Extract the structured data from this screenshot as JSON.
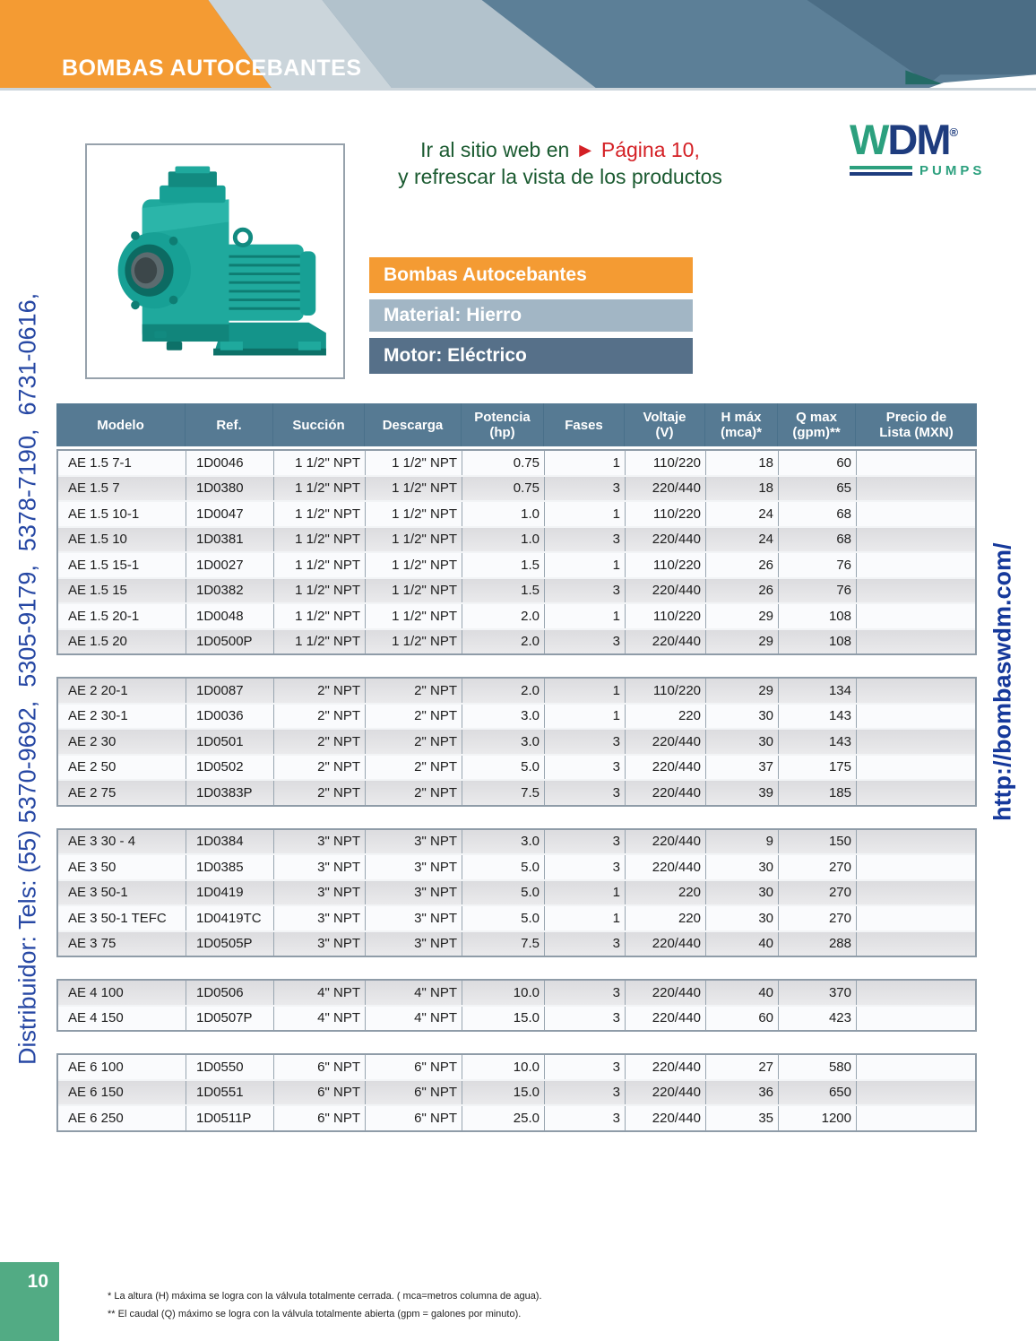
{
  "page": {
    "title": "BOMBAS AUTOCEBANTES",
    "page_number": "10",
    "left_vertical_text": "Distribuidor: Tels: (55) 5370-9692,  5305-9179,  5378-7190,  6731-0616,",
    "right_vertical_text": "http://bombaswdm.com/",
    "footnote1": "* La altura (H) máxima se logra con la válvula totalmente cerrada. ( mca=metros columna de agua).",
    "footnote2": "** El caudal (Q) máximo se logra con la válvula totalmente abierta (gpm = galones por minuto)."
  },
  "promo": {
    "line1_green": "Ir al sitio web en ",
    "line1_arrow": "► ",
    "line1_red": "Página 10,",
    "line2_green": "y refrescar la vista de los productos"
  },
  "logo": {
    "letter_w": "W",
    "letters_dm": "DM",
    "registered": "®",
    "subtitle": "PUMPS"
  },
  "banners": [
    {
      "label": "Bombas Autocebantes"
    },
    {
      "label": "Material: Hierro"
    },
    {
      "label": "Motor: Eléctrico"
    }
  ],
  "icons": {
    "pump_image": "teal-self-priming-pump-with-electric-motor"
  },
  "colors": {
    "accent_orange": "#f49b33",
    "header_band_blue": "#5c7f97",
    "header_band_dark": "#4b6d85",
    "header_teal_notch": "#246b66",
    "table_header_blue": "#567a93",
    "banner_material_gray": "#a2b6c5",
    "banner_motor_slate": "#567089",
    "pump_teal": "#1fa99d",
    "footer_green": "#52ab84",
    "promo_green": "#1a5a30",
    "promo_red": "#d42025",
    "logo_green": "#2ca07e",
    "logo_navy": "#1e3c7e",
    "vertical_text_blue": "#2748a4",
    "url_blue": "#16399b"
  },
  "table": {
    "headers": [
      [
        "Modelo"
      ],
      [
        "Ref."
      ],
      [
        "Succión"
      ],
      [
        "Descarga"
      ],
      [
        "Potencia",
        "(hp)"
      ],
      [
        "Fases"
      ],
      [
        "Voltaje",
        "(V)"
      ],
      [
        "H máx",
        "(mca)*"
      ],
      [
        "Q max",
        "(gpm)**"
      ],
      [
        "Precio de",
        "Lista (MXN)"
      ]
    ],
    "groups": [
      {
        "start": "light",
        "rows": [
          [
            "AE 1.5 7-1",
            "1D0046",
            "1 1/2\" NPT",
            "1 1/2\" NPT",
            "0.75",
            "1",
            "110/220",
            "18",
            "60",
            ""
          ],
          [
            "AE 1.5 7",
            "1D0380",
            "1 1/2\" NPT",
            "1 1/2\" NPT",
            "0.75",
            "3",
            "220/440",
            "18",
            "65",
            ""
          ],
          [
            "AE 1.5 10-1",
            "1D0047",
            "1 1/2\" NPT",
            "1 1/2\" NPT",
            "1.0",
            "1",
            "110/220",
            "24",
            "68",
            ""
          ],
          [
            "AE 1.5 10",
            "1D0381",
            "1 1/2\" NPT",
            "1 1/2\" NPT",
            "1.0",
            "3",
            "220/440",
            "24",
            "68",
            ""
          ],
          [
            "AE 1.5 15-1",
            "1D0027",
            "1 1/2\" NPT",
            "1 1/2\" NPT",
            "1.5",
            "1",
            "110/220",
            "26",
            "76",
            ""
          ],
          [
            "AE 1.5 15",
            "1D0382",
            "1 1/2\" NPT",
            "1 1/2\" NPT",
            "1.5",
            "3",
            "220/440",
            "26",
            "76",
            ""
          ],
          [
            "AE 1.5 20-1",
            "1D0048",
            "1 1/2\" NPT",
            "1 1/2\" NPT",
            "2.0",
            "1",
            "110/220",
            "29",
            "108",
            ""
          ],
          [
            "AE 1.5 20",
            "1D0500P",
            "1 1/2\" NPT",
            "1 1/2\" NPT",
            "2.0",
            "3",
            "220/440",
            "29",
            "108",
            ""
          ]
        ]
      },
      {
        "start": "gray",
        "rows": [
          [
            "AE 2 20-1",
            "1D0087",
            "2\" NPT",
            "2\" NPT",
            "2.0",
            "1",
            "110/220",
            "29",
            "134",
            ""
          ],
          [
            "AE 2 30-1",
            "1D0036",
            "2\" NPT",
            "2\" NPT",
            "3.0",
            "1",
            "220",
            "30",
            "143",
            ""
          ],
          [
            "AE 2 30",
            "1D0501",
            "2\" NPT",
            "2\" NPT",
            "3.0",
            "3",
            "220/440",
            "30",
            "143",
            ""
          ],
          [
            "AE 2 50",
            "1D0502",
            "2\" NPT",
            "2\" NPT",
            "5.0",
            "3",
            "220/440",
            "37",
            "175",
            ""
          ],
          [
            "AE 2 75",
            "1D0383P",
            "2\" NPT",
            "2\" NPT",
            "7.5",
            "3",
            "220/440",
            "39",
            "185",
            ""
          ]
        ]
      },
      {
        "start": "gray",
        "rows": [
          [
            "AE 3 30 - 4",
            "1D0384",
            "3\" NPT",
            "3\" NPT",
            "3.0",
            "3",
            "220/440",
            "9",
            "150",
            ""
          ],
          [
            "AE 3 50",
            "1D0385",
            "3\" NPT",
            "3\" NPT",
            "5.0",
            "3",
            "220/440",
            "30",
            "270",
            ""
          ],
          [
            "AE 3 50-1",
            "1D0419",
            "3\" NPT",
            "3\" NPT",
            "5.0",
            "1",
            "220",
            "30",
            "270",
            ""
          ],
          [
            "AE 3 50-1 TEFC",
            "1D0419TC",
            "3\" NPT",
            "3\" NPT",
            "5.0",
            "1",
            "220",
            "30",
            "270",
            ""
          ],
          [
            "AE 3 75",
            "1D0505P",
            "3\" NPT",
            "3\" NPT",
            "7.5",
            "3",
            "220/440",
            "40",
            "288",
            ""
          ]
        ]
      },
      {
        "start": "gray",
        "rows": [
          [
            "AE 4 100",
            "1D0506",
            "4\" NPT",
            "4\" NPT",
            "10.0",
            "3",
            "220/440",
            "40",
            "370",
            ""
          ],
          [
            "AE 4 150",
            "1D0507P",
            "4\" NPT",
            "4\" NPT",
            "15.0",
            "3",
            "220/440",
            "60",
            "423",
            ""
          ]
        ]
      },
      {
        "start": "light",
        "rows": [
          [
            "AE 6 100",
            "1D0550",
            "6\" NPT",
            "6\" NPT",
            "10.0",
            "3",
            "220/440",
            "27",
            "580",
            ""
          ],
          [
            "AE 6 150",
            "1D0551",
            "6\" NPT",
            "6\" NPT",
            "15.0",
            "3",
            "220/440",
            "36",
            "650",
            ""
          ],
          [
            "AE 6 250",
            "1D0511P",
            "6\" NPT",
            "6\" NPT",
            "25.0",
            "3",
            "220/440",
            "35",
            "1200",
            ""
          ]
        ]
      }
    ]
  }
}
